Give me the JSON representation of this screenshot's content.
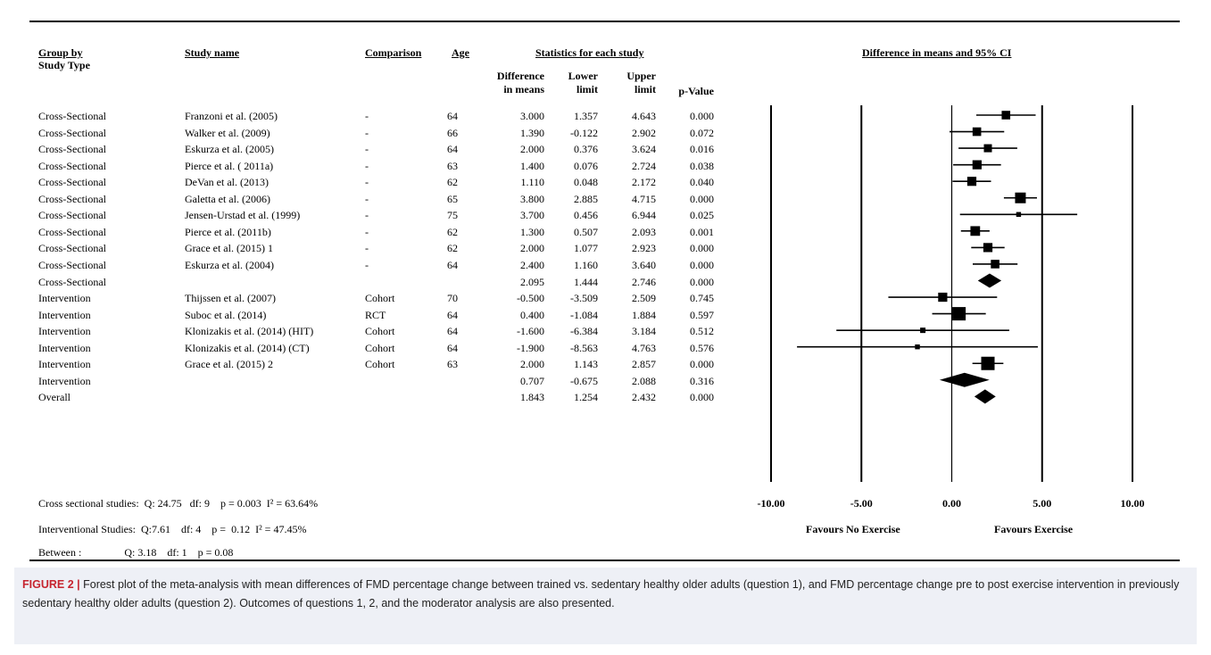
{
  "headers": {
    "group_by": "Group by",
    "study_type": "Study Type",
    "study_name": "Study name",
    "comparison": "Comparison",
    "age": "Age",
    "stats": "Statistics for each study",
    "diff_line1": "Difference",
    "diff_line2": "in means",
    "lower_line1": "Lower",
    "lower_line2": "limit",
    "upper_line1": "Upper",
    "upper_line2": "limit",
    "pvalue": "p-Value",
    "ci_title": "Difference in means and 95% CI"
  },
  "rows": [
    {
      "group": "Cross-Sectional",
      "study": "Franzoni et al. (2005)",
      "comparison": "-",
      "age": "64",
      "diff": "3.000",
      "lower": "1.357",
      "upper": "4.643",
      "p": "0.000"
    },
    {
      "group": "Cross-Sectional",
      "study": "Walker et al. (2009)",
      "comparison": "-",
      "age": "66",
      "diff": "1.390",
      "lower": "-0.122",
      "upper": "2.902",
      "p": "0.072"
    },
    {
      "group": "Cross-Sectional",
      "study": "Eskurza et al. (2005)",
      "comparison": "-",
      "age": "64",
      "diff": "2.000",
      "lower": "0.376",
      "upper": "3.624",
      "p": "0.016"
    },
    {
      "group": "Cross-Sectional",
      "study": "Pierce et al. ( 2011a)",
      "comparison": "-",
      "age": "63",
      "diff": "1.400",
      "lower": "0.076",
      "upper": "2.724",
      "p": "0.038"
    },
    {
      "group": "Cross-Sectional",
      "study": "DeVan et al. (2013)",
      "comparison": "-",
      "age": "62",
      "diff": "1.110",
      "lower": "0.048",
      "upper": "2.172",
      "p": "0.040"
    },
    {
      "group": "Cross-Sectional",
      "study": "Galetta et al. (2006)",
      "comparison": "-",
      "age": "65",
      "diff": "3.800",
      "lower": "2.885",
      "upper": "4.715",
      "p": "0.000"
    },
    {
      "group": "Cross-Sectional",
      "study": "Jensen-Urstad et al. (1999)",
      "comparison": "-",
      "age": "75",
      "diff": "3.700",
      "lower": "0.456",
      "upper": "6.944",
      "p": "0.025"
    },
    {
      "group": "Cross-Sectional",
      "study": "Pierce et al. (2011b)",
      "comparison": "-",
      "age": "62",
      "diff": "1.300",
      "lower": "0.507",
      "upper": "2.093",
      "p": "0.001"
    },
    {
      "group": "Cross-Sectional",
      "study": "Grace et al. (2015) 1",
      "comparison": "-",
      "age": "62",
      "diff": "2.000",
      "lower": "1.077",
      "upper": "2.923",
      "p": "0.000"
    },
    {
      "group": "Cross-Sectional",
      "study": "Eskurza et al. (2004)",
      "comparison": "-",
      "age": "64",
      "diff": "2.400",
      "lower": "1.160",
      "upper": "3.640",
      "p": "0.000"
    },
    {
      "group": "Cross-Sectional",
      "study": "",
      "comparison": "",
      "age": "",
      "diff": "2.095",
      "lower": "1.444",
      "upper": "2.746",
      "p": "0.000"
    },
    {
      "group": "Intervention",
      "study": "Thijssen et al. (2007)",
      "comparison": "Cohort",
      "age": "70",
      "diff": "-0.500",
      "lower": "-3.509",
      "upper": "2.509",
      "p": "0.745"
    },
    {
      "group": "Intervention",
      "study": "Suboc et al. (2014)",
      "comparison": "RCT",
      "age": "64",
      "diff": "0.400",
      "lower": "-1.084",
      "upper": "1.884",
      "p": "0.597"
    },
    {
      "group": "Intervention",
      "study": "Klonizakis et al. (2014) (HIT)",
      "comparison": "Cohort",
      "age": "64",
      "diff": "-1.600",
      "lower": "-6.384",
      "upper": "3.184",
      "p": "0.512"
    },
    {
      "group": "Intervention",
      "study": "Klonizakis et al. (2014) (CT)",
      "comparison": "Cohort",
      "age": "64",
      "diff": "-1.900",
      "lower": "-8.563",
      "upper": "4.763",
      "p": "0.576"
    },
    {
      "group": "Intervention",
      "study": "Grace et al. (2015) 2",
      "comparison": "Cohort",
      "age": "63",
      "diff": "2.000",
      "lower": "1.143",
      "upper": "2.857",
      "p": "0.000"
    },
    {
      "group": "Intervention",
      "study": "",
      "comparison": "",
      "age": "",
      "diff": "0.707",
      "lower": "-0.675",
      "upper": "2.088",
      "p": "0.316"
    },
    {
      "group": "Overall",
      "study": "",
      "comparison": "",
      "age": "",
      "diff": "1.843",
      "lower": "1.254",
      "upper": "2.432",
      "p": "0.000"
    }
  ],
  "summary_stats": {
    "cross": "Cross sectional studies:  Q: 24.75   df: 9    p = 0.003  I² = 63.64%",
    "interv": "Interventional Studies:  Q:7.61    df: 4    p =  0.12  I² = 47.45%",
    "between": "Between :                Q: 3.18    df: 1    p = 0.08"
  },
  "axis": {
    "ticks": [
      "-10.00",
      "-5.00",
      "0.00",
      "5.00",
      "10.00"
    ],
    "left_label": "Favours No Exercise",
    "right_label": "Favours Exercise"
  },
  "caption": {
    "label": "FIGURE 2 |",
    "text": "Forest plot of the meta-analysis with mean differences of FMD percentage change between trained vs. sedentary healthy older adults (question 1), and FMD percentage change pre to post exercise intervention in previously sedentary healthy older adults (question 2). Outcomes of questions 1, 2, and the moderator analysis are also presented."
  },
  "chart_data": {
    "type": "forest",
    "xlim": [
      -10,
      10
    ],
    "x_ticks": [
      -10,
      -5,
      0,
      5,
      10
    ],
    "title": "Difference in means and 95% CI",
    "xlabel_left": "Favours No Exercise",
    "xlabel_right": "Favours Exercise",
    "points": [
      {
        "study": "Franzoni et al. (2005)",
        "mean": 3.0,
        "lower": 1.357,
        "upper": 4.643,
        "kind": "study",
        "weight": 0.55
      },
      {
        "study": "Walker et al. (2009)",
        "mean": 1.39,
        "lower": -0.122,
        "upper": 2.902,
        "kind": "study",
        "weight": 0.55
      },
      {
        "study": "Eskurza et al. (2005)",
        "mean": 2.0,
        "lower": 0.376,
        "upper": 3.624,
        "kind": "study",
        "weight": 0.5
      },
      {
        "study": "Pierce et al. ( 2011a)",
        "mean": 1.4,
        "lower": 0.076,
        "upper": 2.724,
        "kind": "study",
        "weight": 0.6
      },
      {
        "study": "DeVan et al. (2013)",
        "mean": 1.11,
        "lower": 0.048,
        "upper": 2.172,
        "kind": "study",
        "weight": 0.6
      },
      {
        "study": "Galetta et al. (2006)",
        "mean": 3.8,
        "lower": 2.885,
        "upper": 4.715,
        "kind": "study",
        "weight": 0.75
      },
      {
        "study": "Jensen-Urstad et al. (1999)",
        "mean": 3.7,
        "lower": 0.456,
        "upper": 6.944,
        "kind": "study",
        "weight": 0.2
      },
      {
        "study": "Pierce et al. (2011b)",
        "mean": 1.3,
        "lower": 0.507,
        "upper": 2.093,
        "kind": "study",
        "weight": 0.65
      },
      {
        "study": "Grace et al. (2015) 1",
        "mean": 2.0,
        "lower": 1.077,
        "upper": 2.923,
        "kind": "study",
        "weight": 0.6
      },
      {
        "study": "Eskurza et al. (2004)",
        "mean": 2.4,
        "lower": 1.16,
        "upper": 3.64,
        "kind": "study",
        "weight": 0.55
      },
      {
        "study": "Cross-Sectional",
        "mean": 2.095,
        "lower": 1.444,
        "upper": 2.746,
        "kind": "summary"
      },
      {
        "study": "Thijssen et al. (2007)",
        "mean": -0.5,
        "lower": -3.509,
        "upper": 2.509,
        "kind": "study",
        "weight": 0.6
      },
      {
        "study": "Suboc et al. (2014)",
        "mean": 0.4,
        "lower": -1.084,
        "upper": 1.884,
        "kind": "study",
        "weight": 1.0
      },
      {
        "study": "Klonizakis et al. (2014) (HIT)",
        "mean": -1.6,
        "lower": -6.384,
        "upper": 3.184,
        "kind": "study",
        "weight": 0.25
      },
      {
        "study": "Klonizakis et al. (2014) (CT)",
        "mean": -1.9,
        "lower": -8.563,
        "upper": 4.763,
        "kind": "study",
        "weight": 0.2
      },
      {
        "study": "Grace et al. (2015) 2",
        "mean": 2.0,
        "lower": 1.143,
        "upper": 2.857,
        "kind": "study",
        "weight": 1.0
      },
      {
        "study": "Intervention",
        "mean": 0.707,
        "lower": -0.675,
        "upper": 2.088,
        "kind": "summary"
      },
      {
        "study": "Overall",
        "mean": 1.843,
        "lower": 1.254,
        "upper": 2.432,
        "kind": "summary"
      }
    ]
  }
}
